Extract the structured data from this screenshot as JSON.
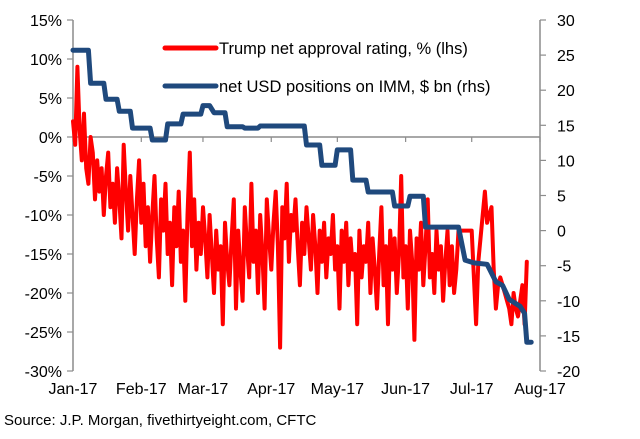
{
  "chart_data": {
    "type": "line",
    "title": "",
    "xlabel": "",
    "ylabel_left": "",
    "ylabel_right": "",
    "x_unit": "days since 2017-01-01",
    "x_ticks": [
      {
        "label": "Jan-17",
        "day": 0
      },
      {
        "label": "Feb-17",
        "day": 31
      },
      {
        "label": "Mar-17",
        "day": 59
      },
      {
        "label": "Apr-17",
        "day": 90
      },
      {
        "label": "May-17",
        "day": 120
      },
      {
        "label": "Jun-17",
        "day": 151
      },
      {
        "label": "Jul-17",
        "day": 181
      },
      {
        "label": "Aug-17",
        "day": 212
      }
    ],
    "xlim": [
      0,
      212
    ],
    "y_left": {
      "ylim": [
        -30,
        15
      ],
      "ticks": [
        15,
        10,
        5,
        0,
        -5,
        -10,
        -15,
        -20,
        -25,
        -30
      ],
      "tick_labels": [
        "15%",
        "10%",
        "5%",
        "0%",
        "-5%",
        "-10%",
        "-15%",
        "-20%",
        "-25%",
        "-30%"
      ]
    },
    "y_right": {
      "ylim": [
        -20,
        30
      ],
      "ticks": [
        30,
        25,
        20,
        15,
        10,
        5,
        0,
        -5,
        -10,
        -15,
        -20
      ],
      "tick_labels": [
        "30",
        "25",
        "20",
        "15",
        "10",
        "5",
        "0",
        "-5",
        "-10",
        "-15",
        "-20"
      ]
    },
    "grid": false,
    "legend_position": "top-center",
    "series": [
      {
        "name": "Trump net approval rating, % (lhs)",
        "axis": "left",
        "color": "#ff0000",
        "points": [
          [
            0,
            2
          ],
          [
            1,
            -1
          ],
          [
            2,
            9
          ],
          [
            3,
            1
          ],
          [
            4,
            -3
          ],
          [
            5,
            3
          ],
          [
            6,
            -4
          ],
          [
            7,
            -6
          ],
          [
            8,
            0
          ],
          [
            9,
            -2
          ],
          [
            10,
            -8
          ],
          [
            11,
            -3
          ],
          [
            12,
            -7
          ],
          [
            13,
            -4
          ],
          [
            14,
            -10
          ],
          [
            15,
            -5
          ],
          [
            16,
            -2
          ],
          [
            17,
            -9
          ],
          [
            18,
            -6
          ],
          [
            19,
            -11
          ],
          [
            20,
            -4
          ],
          [
            21,
            -8
          ],
          [
            22,
            -13
          ],
          [
            23,
            -1
          ],
          [
            24,
            -7
          ],
          [
            25,
            -12
          ],
          [
            26,
            -5
          ],
          [
            27,
            -10
          ],
          [
            28,
            -15
          ],
          [
            29,
            -8
          ],
          [
            30,
            -3
          ],
          [
            31,
            -11
          ],
          [
            32,
            -6
          ],
          [
            33,
            -14
          ],
          [
            34,
            -9
          ],
          [
            35,
            -16
          ],
          [
            36,
            -10
          ],
          [
            37,
            -5
          ],
          [
            38,
            -13
          ],
          [
            39,
            -18
          ],
          [
            40,
            -8
          ],
          [
            41,
            -12
          ],
          [
            42,
            -6
          ],
          [
            43,
            -15
          ],
          [
            44,
            -11
          ],
          [
            45,
            -19
          ],
          [
            46,
            -9
          ],
          [
            47,
            -14
          ],
          [
            48,
            -7
          ],
          [
            49,
            -16
          ],
          [
            50,
            -12
          ],
          [
            51,
            -21
          ],
          [
            52,
            -10
          ],
          [
            53,
            -2
          ],
          [
            54,
            -14
          ],
          [
            55,
            -8
          ],
          [
            56,
            -17
          ],
          [
            57,
            -11
          ],
          [
            58,
            -15
          ],
          [
            59,
            -9
          ],
          [
            60,
            -13
          ],
          [
            61,
            -18
          ],
          [
            62,
            -10
          ],
          [
            63,
            -15
          ],
          [
            64,
            -20
          ],
          [
            65,
            -12
          ],
          [
            66,
            -17
          ],
          [
            67,
            -14
          ],
          [
            68,
            -24
          ],
          [
            69,
            -11
          ],
          [
            70,
            -16
          ],
          [
            71,
            -19
          ],
          [
            72,
            -13
          ],
          [
            73,
            -8
          ],
          [
            74,
            -22
          ],
          [
            75,
            -12
          ],
          [
            76,
            -17
          ],
          [
            77,
            -21
          ],
          [
            78,
            -9
          ],
          [
            79,
            -14
          ],
          [
            80,
            -18
          ],
          [
            81,
            -6
          ],
          [
            82,
            -16
          ],
          [
            83,
            -12
          ],
          [
            84,
            -20
          ],
          [
            85,
            -10
          ],
          [
            86,
            -15
          ],
          [
            87,
            -22
          ],
          [
            88,
            -8
          ],
          [
            89,
            -13
          ],
          [
            90,
            -17
          ],
          [
            91,
            -11
          ],
          [
            92,
            -7
          ],
          [
            93,
            -14
          ],
          [
            94,
            -27
          ],
          [
            95,
            -9
          ],
          [
            96,
            -13
          ],
          [
            97,
            -6
          ],
          [
            98,
            -16
          ],
          [
            99,
            -10
          ],
          [
            100,
            -12
          ],
          [
            101,
            -8
          ],
          [
            102,
            -14
          ],
          [
            103,
            -19
          ],
          [
            104,
            -11
          ],
          [
            105,
            -15
          ],
          [
            106,
            -9
          ],
          [
            107,
            -13
          ],
          [
            108,
            -17
          ],
          [
            109,
            -10
          ],
          [
            110,
            -14
          ],
          [
            111,
            -20
          ],
          [
            112,
            -12
          ],
          [
            113,
            -16
          ],
          [
            114,
            -11
          ],
          [
            115,
            -18
          ],
          [
            116,
            -13
          ],
          [
            117,
            -15
          ],
          [
            118,
            -10
          ],
          [
            119,
            -17
          ],
          [
            120,
            -14
          ],
          [
            121,
            -22
          ],
          [
            122,
            -12
          ],
          [
            123,
            -16
          ],
          [
            124,
            -11
          ],
          [
            125,
            -19
          ],
          [
            126,
            -13
          ],
          [
            127,
            -17
          ],
          [
            128,
            -15
          ],
          [
            129,
            -24
          ],
          [
            130,
            -12
          ],
          [
            131,
            -18
          ],
          [
            132,
            -14
          ],
          [
            133,
            -16
          ],
          [
            134,
            -11
          ],
          [
            135,
            -20
          ],
          [
            136,
            -13
          ],
          [
            137,
            -17
          ],
          [
            138,
            -22
          ],
          [
            139,
            -15
          ],
          [
            140,
            -9
          ],
          [
            141,
            -19
          ],
          [
            142,
            -14
          ],
          [
            143,
            -24
          ],
          [
            144,
            -12
          ],
          [
            145,
            -17
          ],
          [
            146,
            -13
          ],
          [
            147,
            -20
          ],
          [
            148,
            -15
          ],
          [
            149,
            -5
          ],
          [
            150,
            -18
          ],
          [
            151,
            -14
          ],
          [
            152,
            -22
          ],
          [
            153,
            -12
          ],
          [
            154,
            -16
          ],
          [
            155,
            -26
          ],
          [
            156,
            -13
          ],
          [
            157,
            -17
          ],
          [
            158,
            -11
          ],
          [
            159,
            -19
          ],
          [
            160,
            -14
          ],
          [
            161,
            -8
          ],
          [
            162,
            -18
          ],
          [
            163,
            -15
          ],
          [
            164,
            -20
          ],
          [
            165,
            -12
          ],
          [
            166,
            -17
          ],
          [
            167,
            -14
          ],
          [
            168,
            -21
          ],
          [
            169,
            -16
          ],
          [
            170,
            -12
          ],
          [
            171,
            -19
          ],
          [
            172,
            -14
          ],
          [
            173,
            -20
          ],
          [
            174,
            -17
          ],
          [
            175,
            -12
          ],
          [
            176,
            -12
          ],
          [
            177,
            -12
          ],
          [
            178,
            -12
          ],
          [
            179,
            -12
          ],
          [
            180,
            -12
          ],
          [
            181,
            -12
          ],
          [
            182,
            -18
          ],
          [
            183,
            -24
          ],
          [
            184,
            -16
          ],
          [
            185,
            -13
          ],
          [
            186,
            -10
          ],
          [
            187,
            -7
          ],
          [
            188,
            -11
          ],
          [
            189,
            -10
          ],
          [
            190,
            -9
          ],
          [
            191,
            -17
          ],
          [
            192,
            -22
          ],
          [
            193,
            -19
          ],
          [
            194,
            -18
          ],
          [
            195,
            -19
          ],
          [
            196,
            -20
          ],
          [
            197,
            -21
          ],
          [
            198,
            -22
          ],
          [
            199,
            -24
          ],
          [
            200,
            -20
          ],
          [
            201,
            -22
          ],
          [
            202,
            -23
          ],
          [
            203,
            -21
          ],
          [
            204,
            -19
          ],
          [
            205,
            -24
          ],
          [
            206,
            -16
          ]
        ]
      },
      {
        "name": "net USD positions on IMM, $ bn (rhs)",
        "axis": "right",
        "color": "#1f497d",
        "points": [
          [
            0,
            25.7
          ],
          [
            7,
            25.7
          ],
          [
            8,
            21
          ],
          [
            14,
            21
          ],
          [
            15,
            18.7
          ],
          [
            20,
            18.7
          ],
          [
            21,
            17
          ],
          [
            26,
            17
          ],
          [
            27,
            14.6
          ],
          [
            35,
            14.6
          ],
          [
            36,
            12.9
          ],
          [
            42,
            12.9
          ],
          [
            43,
            15.2
          ],
          [
            49,
            15.2
          ],
          [
            50,
            16.6
          ],
          [
            58,
            16.6
          ],
          [
            59,
            17.8
          ],
          [
            62,
            17.8
          ],
          [
            64,
            16.8
          ],
          [
            69,
            16.8
          ],
          [
            70,
            14.8
          ],
          [
            77,
            14.8
          ],
          [
            78,
            14.6
          ],
          [
            84,
            14.6
          ],
          [
            85,
            14.9
          ],
          [
            105,
            14.9
          ],
          [
            106,
            12.2
          ],
          [
            112,
            12.2
          ],
          [
            113,
            9.3
          ],
          [
            119,
            9.3
          ],
          [
            120,
            11.5
          ],
          [
            126,
            11.5
          ],
          [
            127,
            7.2
          ],
          [
            133,
            7.2
          ],
          [
            134,
            5.5
          ],
          [
            145,
            5.5
          ],
          [
            146,
            3.5
          ],
          [
            152,
            3.5
          ],
          [
            153,
            4.9
          ],
          [
            159,
            4.9
          ],
          [
            160,
            0.5
          ],
          [
            175,
            0.5
          ],
          [
            178,
            -4.2
          ],
          [
            182,
            -4.6
          ],
          [
            188,
            -4.8
          ],
          [
            192,
            -7.3
          ],
          [
            195,
            -7.8
          ],
          [
            198,
            -9.8
          ],
          [
            203,
            -10.8
          ],
          [
            205,
            -11.8
          ],
          [
            206,
            -15.9
          ],
          [
            208,
            -15.9
          ]
        ]
      }
    ]
  },
  "legend": {
    "items": [
      {
        "label": "Trump net approval rating, % (lhs)",
        "color": "#ff0000"
      },
      {
        "label": "net USD positions on IMM, $ bn (rhs)",
        "color": "#1f497d"
      }
    ]
  },
  "source": "Source: J.P. Morgan, fivethirtyeight.com, CFTC",
  "colors": {
    "axis": "#8c8c8c",
    "red": "#ff0000",
    "blue": "#1f497d"
  }
}
